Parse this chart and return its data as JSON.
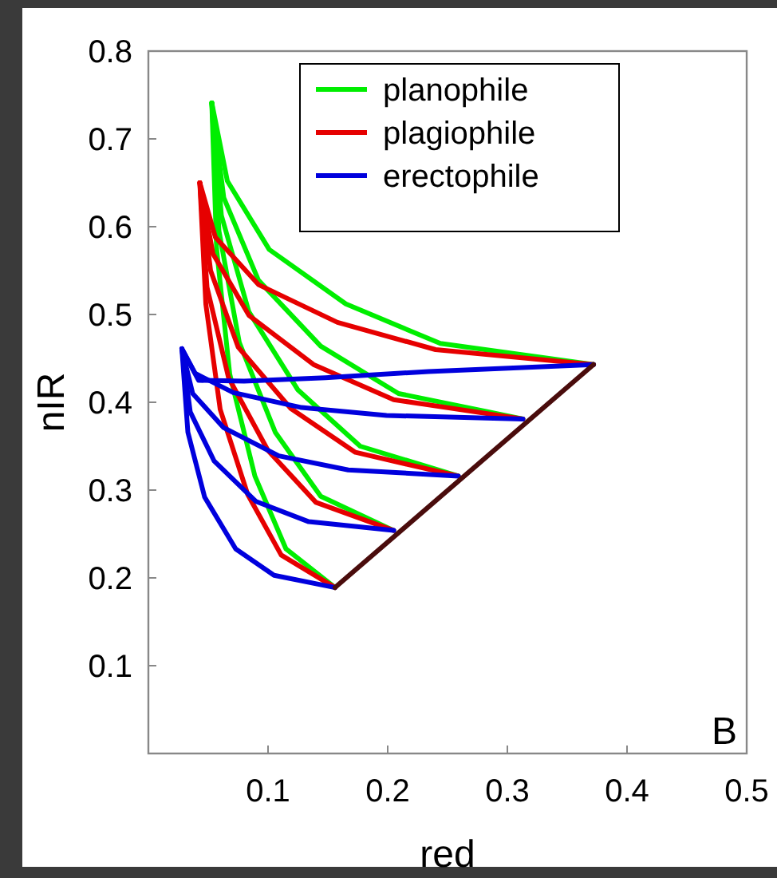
{
  "chart_data": {
    "type": "line",
    "xlabel": "red",
    "ylabel": "nIR",
    "xlim": [
      0,
      0.5
    ],
    "xticks": [
      0.1,
      0.2,
      0.3,
      0.4,
      0.5
    ],
    "ylim": [
      0,
      0.8
    ],
    "yticks": [
      0.1,
      0.2,
      0.3,
      0.4,
      0.5,
      0.6,
      0.7,
      0.8
    ],
    "grid": false,
    "legend": "top right",
    "marker": "none",
    "line_style": "solid",
    "annotations": [
      "B"
    ],
    "series": [
      {
        "name": "planophile",
        "color": "#00ee00",
        "x": [
          0.053,
          0.057,
          0.068,
          0.089,
          0.115,
          0.156
        ],
        "values": [
          0.741,
          0.575,
          0.432,
          0.316,
          0.233,
          0.189
        ]
      },
      {
        "color": "#00ee00",
        "x": [
          0.053,
          0.059,
          0.076,
          0.106,
          0.144,
          0.205
        ],
        "values": [
          0.741,
          0.595,
          0.468,
          0.366,
          0.293,
          0.254
        ]
      },
      {
        "color": "#00ee00",
        "x": [
          0.053,
          0.061,
          0.084,
          0.125,
          0.177,
          0.259
        ],
        "values": [
          0.741,
          0.613,
          0.503,
          0.414,
          0.35,
          0.316
        ]
      },
      {
        "color": "#00ee00",
        "x": [
          0.053,
          0.063,
          0.092,
          0.144,
          0.209,
          0.313
        ],
        "values": [
          0.741,
          0.633,
          0.539,
          0.464,
          0.41,
          0.381
        ]
      },
      {
        "color": "#00ee00",
        "x": [
          0.053,
          0.066,
          0.101,
          0.165,
          0.244,
          0.372
        ],
        "values": [
          0.741,
          0.652,
          0.574,
          0.512,
          0.467,
          0.443
        ]
      },
      {
        "name": "plagiophile",
        "color": "#e60000",
        "x": [
          0.043,
          0.048,
          0.06,
          0.083,
          0.111,
          0.156
        ],
        "values": [
          0.65,
          0.512,
          0.392,
          0.295,
          0.226,
          0.189
        ]
      },
      {
        "color": "#e60000",
        "x": [
          0.043,
          0.049,
          0.067,
          0.1,
          0.14,
          0.205
        ],
        "values": [
          0.65,
          0.531,
          0.428,
          0.345,
          0.286,
          0.254
        ]
      },
      {
        "color": "#e60000",
        "x": [
          0.043,
          0.052,
          0.075,
          0.119,
          0.173,
          0.259
        ],
        "values": [
          0.65,
          0.55,
          0.463,
          0.393,
          0.343,
          0.316
        ]
      },
      {
        "color": "#e60000",
        "x": [
          0.043,
          0.054,
          0.084,
          0.138,
          0.205,
          0.313
        ],
        "values": [
          0.65,
          0.569,
          0.499,
          0.443,
          0.403,
          0.381
        ]
      },
      {
        "color": "#e60000",
        "x": [
          0.043,
          0.056,
          0.092,
          0.158,
          0.24,
          0.372
        ],
        "values": [
          0.65,
          0.588,
          0.534,
          0.491,
          0.46,
          0.443
        ]
      },
      {
        "name": "erectophile",
        "color": "#0000dd",
        "x": [
          0.028,
          0.033,
          0.047,
          0.073,
          0.105,
          0.156
        ],
        "values": [
          0.461,
          0.366,
          0.292,
          0.233,
          0.203,
          0.189
        ]
      },
      {
        "color": "#0000dd",
        "x": [
          0.028,
          0.035,
          0.055,
          0.09,
          0.134,
          0.205
        ],
        "values": [
          0.461,
          0.389,
          0.333,
          0.287,
          0.264,
          0.254
        ]
      },
      {
        "color": "#0000dd",
        "x": [
          0.028,
          0.037,
          0.063,
          0.109,
          0.167,
          0.259
        ],
        "values": [
          0.461,
          0.41,
          0.371,
          0.339,
          0.323,
          0.316
        ]
      },
      {
        "color": "#0000dd",
        "x": [
          0.028,
          0.039,
          0.071,
          0.128,
          0.199,
          0.313
        ],
        "values": [
          0.461,
          0.433,
          0.411,
          0.394,
          0.385,
          0.381
        ]
      },
      {
        "color": "#0000dd",
        "x": [
          0.028,
          0.042,
          0.08,
          0.148,
          0.234,
          0.372
        ],
        "values": [
          0.461,
          0.425,
          0.424,
          0.428,
          0.435,
          0.443
        ]
      },
      {
        "color": "#4a0c0c",
        "x": [
          0.156,
          0.372
        ],
        "values": [
          0.189,
          0.443
        ]
      }
    ]
  }
}
